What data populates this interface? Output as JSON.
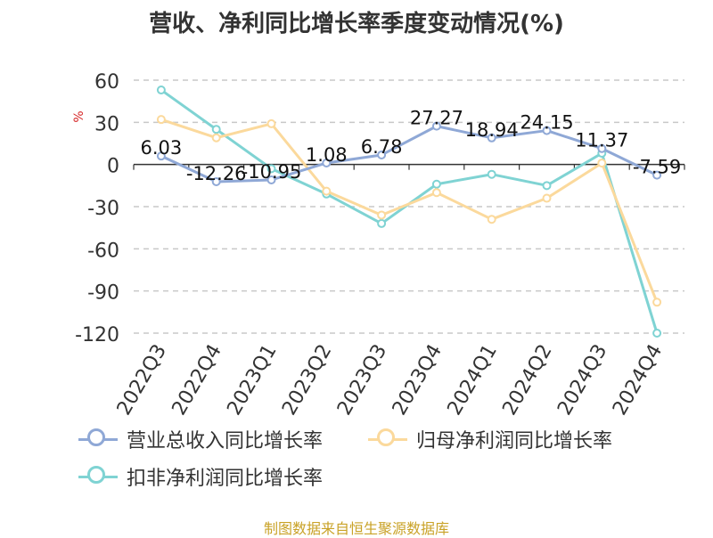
{
  "title": "营收、净利同比增长率季度变动情况(%)",
  "source": "制图数据来自恒生聚源数据库",
  "chart_data": {
    "type": "line",
    "ylabel": "%",
    "ylim": [
      -120,
      60
    ],
    "yticks": [
      60,
      30,
      0,
      -30,
      -60,
      -90,
      -120
    ],
    "grid": "horizontal-dashed",
    "legend_position": "bottom",
    "categories": [
      "2022Q3",
      "2022Q4",
      "2023Q1",
      "2023Q2",
      "2023Q3",
      "2023Q4",
      "2024Q1",
      "2024Q2",
      "2024Q3",
      "2024Q4"
    ],
    "series": [
      {
        "name": "营业总收入同比增长率",
        "color": "#8fa8d6",
        "values": [
          6.03,
          -12.26,
          -10.95,
          1.08,
          6.78,
          27.27,
          18.94,
          24.15,
          11.37,
          -7.59
        ],
        "labels": [
          "6.03",
          "-12.26",
          "-10.95",
          "1.08",
          "6.78",
          "27.27",
          "18.94",
          "24.15",
          "11.37",
          "-7.59"
        ]
      },
      {
        "name": "归母净利润同比增长率",
        "color": "#fbd99c",
        "values": [
          32,
          19,
          29,
          -19,
          -36,
          -20,
          -39,
          -24,
          1,
          -98
        ]
      },
      {
        "name": "扣非净利润同比增长率",
        "color": "#7fd3d3",
        "values": [
          53,
          25,
          -3,
          -21,
          -42,
          -14,
          -7,
          -15,
          8,
          -120
        ]
      }
    ]
  }
}
